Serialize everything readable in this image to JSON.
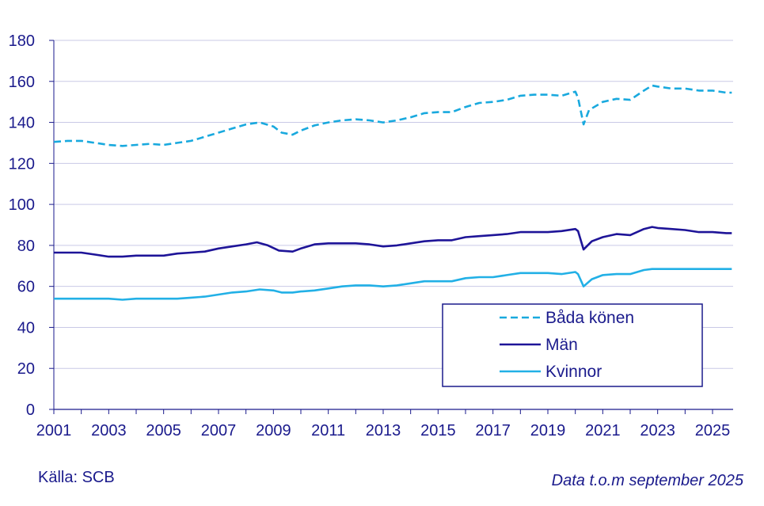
{
  "footer": {
    "source": "Källa: SCB",
    "note": "Data t.o.m september 2025"
  },
  "colors": {
    "axis_text": "#1a1a8c",
    "grid": "#c9c9e6",
    "legend_border": "#1a1a8c"
  },
  "chart_data": {
    "type": "line",
    "title": "",
    "xlabel": "",
    "ylabel": "",
    "xlim": [
      2001.0,
      2025.75
    ],
    "ylim": [
      0,
      180
    ],
    "grid": true,
    "legend_position": "bottom-right",
    "yticks": [
      0,
      20,
      40,
      60,
      80,
      100,
      120,
      140,
      160,
      180
    ],
    "xticks": [
      "2001",
      "2003",
      "2005",
      "2007",
      "2009",
      "2011",
      "2013",
      "2015",
      "2017",
      "2019",
      "2021",
      "2023",
      "2025"
    ],
    "series": [
      {
        "name": "Båda könen",
        "color": "#19a9de",
        "dash": true,
        "points": [
          [
            2001.0,
            130.5
          ],
          [
            2001.5,
            131
          ],
          [
            2002.0,
            131
          ],
          [
            2002.5,
            130
          ],
          [
            2003.0,
            129
          ],
          [
            2003.5,
            128.5
          ],
          [
            2004.0,
            129
          ],
          [
            2004.5,
            129.5
          ],
          [
            2005.0,
            129
          ],
          [
            2005.5,
            130
          ],
          [
            2006.0,
            131
          ],
          [
            2006.5,
            133
          ],
          [
            2007.0,
            135
          ],
          [
            2007.5,
            137
          ],
          [
            2008.0,
            139
          ],
          [
            2008.5,
            140
          ],
          [
            2009.0,
            138
          ],
          [
            2009.3,
            135
          ],
          [
            2009.7,
            134
          ],
          [
            2010.0,
            136
          ],
          [
            2010.5,
            138.5
          ],
          [
            2011.0,
            140
          ],
          [
            2011.5,
            141
          ],
          [
            2012.0,
            141.5
          ],
          [
            2012.5,
            141
          ],
          [
            2013.0,
            140
          ],
          [
            2013.5,
            141
          ],
          [
            2014.0,
            142.5
          ],
          [
            2014.5,
            144.5
          ],
          [
            2015.0,
            145
          ],
          [
            2015.5,
            145
          ],
          [
            2016.0,
            147.5
          ],
          [
            2016.5,
            149.5
          ],
          [
            2017.0,
            150
          ],
          [
            2017.5,
            151
          ],
          [
            2018.0,
            153
          ],
          [
            2018.5,
            153.5
          ],
          [
            2019.0,
            153.5
          ],
          [
            2019.5,
            153
          ],
          [
            2020.0,
            155
          ],
          [
            2020.1,
            152
          ],
          [
            2020.3,
            139
          ],
          [
            2020.5,
            146
          ],
          [
            2021.0,
            150
          ],
          [
            2021.5,
            151.5
          ],
          [
            2022.0,
            151
          ],
          [
            2022.5,
            155.5
          ],
          [
            2022.8,
            158
          ],
          [
            2023.0,
            157.5
          ],
          [
            2023.5,
            156.5
          ],
          [
            2024.0,
            156.5
          ],
          [
            2024.5,
            155.5
          ],
          [
            2025.0,
            155.5
          ],
          [
            2025.5,
            154.5
          ],
          [
            2025.7,
            154.5
          ]
        ]
      },
      {
        "name": "Män",
        "color": "#1e1498",
        "dash": false,
        "points": [
          [
            2001.0,
            76.5
          ],
          [
            2001.5,
            76.5
          ],
          [
            2002.0,
            76.5
          ],
          [
            2002.5,
            75.5
          ],
          [
            2003.0,
            74.5
          ],
          [
            2003.5,
            74.5
          ],
          [
            2004.0,
            75
          ],
          [
            2004.5,
            75
          ],
          [
            2005.0,
            75
          ],
          [
            2005.5,
            76
          ],
          [
            2006.0,
            76.5
          ],
          [
            2006.5,
            77
          ],
          [
            2007.0,
            78.5
          ],
          [
            2007.5,
            79.5
          ],
          [
            2008.0,
            80.5
          ],
          [
            2008.4,
            81.5
          ],
          [
            2008.8,
            80
          ],
          [
            2009.2,
            77.5
          ],
          [
            2009.7,
            77
          ],
          [
            2010.0,
            78.5
          ],
          [
            2010.5,
            80.5
          ],
          [
            2011.0,
            81
          ],
          [
            2011.5,
            81
          ],
          [
            2012.0,
            81
          ],
          [
            2012.5,
            80.5
          ],
          [
            2013.0,
            79.5
          ],
          [
            2013.5,
            80
          ],
          [
            2014.0,
            81
          ],
          [
            2014.5,
            82
          ],
          [
            2015.0,
            82.5
          ],
          [
            2015.5,
            82.5
          ],
          [
            2016.0,
            84
          ],
          [
            2016.5,
            84.5
          ],
          [
            2017.0,
            85
          ],
          [
            2017.5,
            85.5
          ],
          [
            2018.0,
            86.5
          ],
          [
            2018.5,
            86.5
          ],
          [
            2019.0,
            86.5
          ],
          [
            2019.5,
            87
          ],
          [
            2020.0,
            88
          ],
          [
            2020.1,
            87
          ],
          [
            2020.3,
            78
          ],
          [
            2020.6,
            82
          ],
          [
            2021.0,
            84
          ],
          [
            2021.5,
            85.5
          ],
          [
            2022.0,
            85
          ],
          [
            2022.5,
            88
          ],
          [
            2022.8,
            89
          ],
          [
            2023.0,
            88.5
          ],
          [
            2023.5,
            88
          ],
          [
            2024.0,
            87.5
          ],
          [
            2024.5,
            86.5
          ],
          [
            2025.0,
            86.5
          ],
          [
            2025.5,
            86
          ],
          [
            2025.7,
            86
          ]
        ]
      },
      {
        "name": "Kvinnor",
        "color": "#22b0e6",
        "dash": false,
        "points": [
          [
            2001.0,
            54
          ],
          [
            2001.5,
            54
          ],
          [
            2002.0,
            54
          ],
          [
            2002.5,
            54
          ],
          [
            2003.0,
            54
          ],
          [
            2003.5,
            53.5
          ],
          [
            2004.0,
            54
          ],
          [
            2004.5,
            54
          ],
          [
            2005.0,
            54
          ],
          [
            2005.5,
            54
          ],
          [
            2006.0,
            54.5
          ],
          [
            2006.5,
            55
          ],
          [
            2007.0,
            56
          ],
          [
            2007.5,
            57
          ],
          [
            2008.0,
            57.5
          ],
          [
            2008.5,
            58.5
          ],
          [
            2009.0,
            58
          ],
          [
            2009.3,
            57
          ],
          [
            2009.7,
            57
          ],
          [
            2010.0,
            57.5
          ],
          [
            2010.5,
            58
          ],
          [
            2011.0,
            59
          ],
          [
            2011.5,
            60
          ],
          [
            2012.0,
            60.5
          ],
          [
            2012.5,
            60.5
          ],
          [
            2013.0,
            60
          ],
          [
            2013.5,
            60.5
          ],
          [
            2014.0,
            61.5
          ],
          [
            2014.5,
            62.5
          ],
          [
            2015.0,
            62.5
          ],
          [
            2015.5,
            62.5
          ],
          [
            2016.0,
            64
          ],
          [
            2016.5,
            64.5
          ],
          [
            2017.0,
            64.5
          ],
          [
            2017.5,
            65.5
          ],
          [
            2018.0,
            66.5
          ],
          [
            2018.5,
            66.5
          ],
          [
            2019.0,
            66.5
          ],
          [
            2019.5,
            66
          ],
          [
            2020.0,
            67
          ],
          [
            2020.1,
            66
          ],
          [
            2020.3,
            60
          ],
          [
            2020.6,
            63.5
          ],
          [
            2021.0,
            65.5
          ],
          [
            2021.5,
            66
          ],
          [
            2022.0,
            66
          ],
          [
            2022.5,
            68
          ],
          [
            2022.8,
            68.5
          ],
          [
            2023.0,
            68.5
          ],
          [
            2023.5,
            68.5
          ],
          [
            2024.0,
            68.5
          ],
          [
            2024.5,
            68.5
          ],
          [
            2025.0,
            68.5
          ],
          [
            2025.5,
            68.5
          ],
          [
            2025.7,
            68.5
          ]
        ]
      }
    ]
  }
}
